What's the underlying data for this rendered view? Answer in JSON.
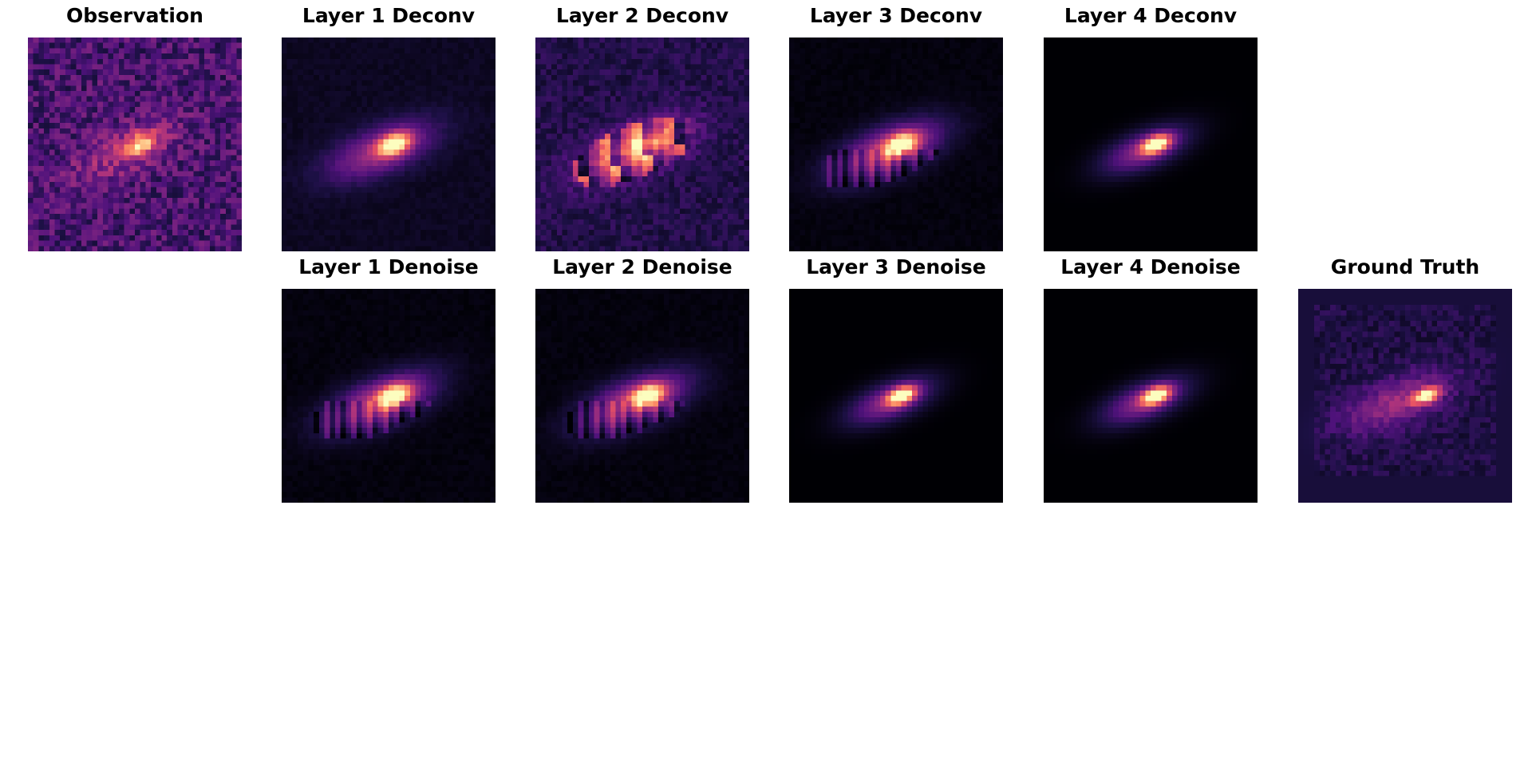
{
  "figure": {
    "colormap": "magma",
    "panels": [
      {
        "key": "observation",
        "title": "Observation",
        "style": "noisy",
        "background": "#3a0f6b"
      },
      {
        "key": "l1_deconv",
        "title": "Layer 1 Deconv",
        "style": "smooth",
        "background": "#07051a"
      },
      {
        "key": "l2_deconv",
        "title": "Layer 2 Deconv",
        "style": "blocky",
        "background": "#190f45"
      },
      {
        "key": "l3_deconv",
        "title": "Layer 3 Deconv",
        "style": "streaky",
        "background": "#030308"
      },
      {
        "key": "l4_deconv",
        "title": "Layer 4 Deconv",
        "style": "clean",
        "background": "#000004"
      },
      {
        "key": "l1_denoise",
        "title": "Layer 1 Denoise",
        "style": "streaky",
        "background": "#05041a"
      },
      {
        "key": "l2_denoise",
        "title": "Layer 2 Denoise",
        "style": "streaky",
        "background": "#030308"
      },
      {
        "key": "l3_denoise",
        "title": "Layer 3 Denoise",
        "style": "clean",
        "background": "#000004"
      },
      {
        "key": "l4_denoise",
        "title": "Layer 4 Denoise",
        "style": "clean",
        "background": "#000004"
      },
      {
        "key": "ground_truth",
        "title": "Ground Truth",
        "style": "framed",
        "background": "#0e0a2e"
      }
    ]
  }
}
